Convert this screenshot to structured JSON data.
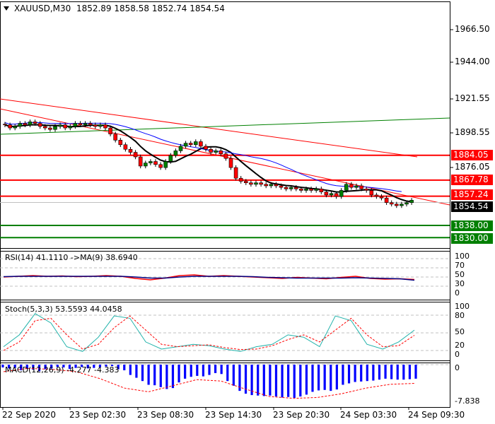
{
  "header": {
    "symbol": "XAUUSD,M30",
    "ohlc": "1852.89 1858.58 1852.74 1854.54"
  },
  "price_axis": [
    "1966.50",
    "1944.00",
    "1921.55",
    "1898.55",
    "1876.05"
  ],
  "current_price": "1854.54",
  "levels": [
    {
      "label": "1884.05",
      "price": 1884.05,
      "color": "#ff0000"
    },
    {
      "label": "1867.78",
      "price": 1867.78,
      "color": "#ff0000"
    },
    {
      "label": "1857.24",
      "price": 1857.24,
      "color": "#ff0000"
    },
    {
      "label": "1838.00",
      "price": 1838.0,
      "color": "#007f00"
    },
    {
      "label": "1830.00",
      "price": 1830.0,
      "color": "#007f00"
    }
  ],
  "rsi": {
    "label": "RSI(14) 41.1110  ->MA(9) 38.6940",
    "axis": [
      "100",
      "70",
      "50",
      "30",
      "0"
    ]
  },
  "stoch": {
    "label": "Stoch(5,3,3) 53.5593 44.0458",
    "axis": [
      "100",
      "80",
      "50",
      "20",
      "0"
    ]
  },
  "macd": {
    "label": "MACD(12,26,9) -4.277 -4.383",
    "axis": [
      "0",
      "-7.838"
    ]
  },
  "time_axis": [
    "22 Sep 2020",
    "23 Sep 02:30",
    "23 Sep 08:30",
    "23 Sep 14:30",
    "23 Sep 20:30",
    "24 Sep 03:30",
    "24 Sep 09:30"
  ],
  "chart_data": {
    "type": "candlestick",
    "closes": [
      1904,
      1902,
      1903,
      1905,
      1904,
      1906,
      1905,
      1903,
      1902,
      1901,
      1903,
      1904,
      1902,
      1903,
      1905,
      1904,
      1905,
      1904,
      1903,
      1904,
      1902,
      1898,
      1894,
      1891,
      1888,
      1886,
      1883,
      1877,
      1879,
      1880,
      1878,
      1876,
      1880,
      1884,
      1887,
      1890,
      1892,
      1891,
      1893,
      1890,
      1888,
      1886,
      1887,
      1885,
      1882,
      1876,
      1869,
      1867,
      1866,
      1865,
      1866,
      1865,
      1864,
      1865,
      1864,
      1863,
      1862,
      1863,
      1862,
      1861,
      1862,
      1861,
      1862,
      1860,
      1858,
      1859,
      1857,
      1861,
      1865,
      1863,
      1864,
      1862,
      1861,
      1858,
      1857,
      1856,
      1853,
      1852,
      1851,
      1852,
      1853,
      1854.54
    ],
    "rsi_series": [
      48,
      50,
      52,
      50,
      51,
      49,
      50,
      52,
      50,
      44,
      40,
      45,
      52,
      54,
      50,
      52,
      50,
      48,
      46,
      44,
      47,
      45,
      43,
      47,
      50,
      44,
      42,
      43,
      41
    ],
    "rsi_ma_series": [
      49,
      50,
      50,
      50,
      50,
      50,
      50,
      50,
      50,
      48,
      45,
      45,
      48,
      50,
      50,
      50,
      50,
      49,
      47,
      46,
      45,
      45,
      45,
      45,
      46,
      45,
      44,
      43,
      39
    ],
    "stoch_main": [
      20,
      45,
      90,
      70,
      20,
      10,
      40,
      85,
      80,
      30,
      15,
      20,
      25,
      22,
      15,
      10,
      20,
      25,
      45,
      40,
      20,
      85,
      75,
      25,
      15,
      30,
      55
    ],
    "stoch_signal": [
      12,
      30,
      75,
      80,
      45,
      15,
      25,
      60,
      85,
      55,
      25,
      20,
      22,
      24,
      18,
      14,
      15,
      22,
      35,
      45,
      30,
      55,
      80,
      45,
      20,
      22,
      44
    ],
    "macd_hist": [
      -0.6,
      -0.8,
      -0.7,
      -1.2,
      -0.9,
      -1.1,
      -1.4,
      -1.0,
      -0.8,
      -0.5,
      -0.6,
      -0.9,
      -0.7,
      -0.5,
      -0.8,
      -0.7,
      -0.6,
      -0.4,
      -0.3,
      -1.0,
      -1.2,
      -2.2,
      -2.8,
      -3.5,
      -4.3,
      -4.4,
      -4.8,
      -5.2,
      -5.0,
      -3.8,
      -3.0,
      -2.6,
      -2.4,
      -2.5,
      -2.2,
      -1.8,
      -2.0,
      -3.5,
      -4.5,
      -5.6,
      -6.2,
      -6.5,
      -6.6,
      -6.7,
      -6.6,
      -6.8,
      -7.0,
      -6.9,
      -7.1,
      -6.8,
      -6.4,
      -5.8,
      -5.5,
      -5.4,
      -5.6,
      -5.3,
      -4.3,
      -4.0,
      -3.7,
      -3.6,
      -3.5,
      -3.4,
      -3.2,
      -3.0,
      -3.1,
      -3.2,
      -3.2,
      -3.1,
      -3.0
    ],
    "macd_signal": [
      -1.5,
      -0.8,
      -1.0,
      -1.5,
      -3.0,
      -5.0,
      -5.8,
      -4.5,
      -3.2,
      -3.5,
      -5.2,
      -6.8,
      -7.2,
      -7.0,
      -6.2,
      -5.0,
      -4.2,
      -4.0
    ],
    "timeframe": "M30"
  }
}
